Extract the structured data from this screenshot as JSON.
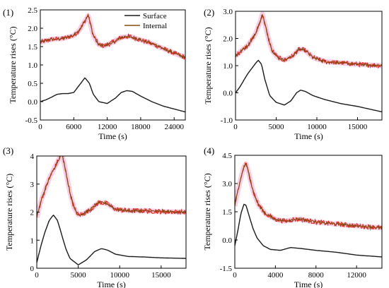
{
  "colors": {
    "surface": "#1a1a1a",
    "internal": "#8b4a0f",
    "internal_noise": "#e0201c",
    "halo": "#f2a6cf",
    "frame": "#000000"
  },
  "chart_data": [
    {
      "type": "line",
      "panel_label": "(1)",
      "xlabel": "Time (s)",
      "ylabel": "Temperature rises (°C)",
      "xlim": [
        0,
        26000
      ],
      "ylim": [
        -0.5,
        2.5
      ],
      "xticks": [
        0,
        6000,
        12000,
        18000,
        24000
      ],
      "xtick_labels": [
        "0",
        "6000",
        "12000",
        "18000",
        "24000"
      ],
      "yticks": [
        -0.5,
        0.0,
        0.5,
        1.0,
        1.5,
        2.0,
        2.5
      ],
      "ytick_labels": [
        "-0.5",
        "0.0",
        "0.5",
        "1.0",
        "1.5",
        "2.0",
        "2.5"
      ],
      "legend": {
        "position": "top-right",
        "entries": [
          "Surface",
          "Internal"
        ]
      },
      "series": [
        {
          "name": "Surface",
          "x": [
            0,
            1000,
            2000,
            3000,
            4000,
            5000,
            6000,
            7000,
            8000,
            8800,
            9500,
            10500,
            12000,
            13500,
            14500,
            15500,
            16500,
            18000,
            20000,
            22000,
            24000,
            26000
          ],
          "y": [
            0.0,
            0.05,
            0.12,
            0.2,
            0.22,
            0.22,
            0.25,
            0.45,
            0.65,
            0.5,
            0.2,
            0.0,
            -0.05,
            0.1,
            0.25,
            0.3,
            0.28,
            0.15,
            0.0,
            -0.12,
            -0.2,
            -0.28
          ]
        },
        {
          "name": "Internal",
          "x": [
            0,
            2000,
            4000,
            6000,
            7000,
            8000,
            8600,
            9000,
            9500,
            10500,
            11500,
            13000,
            14500,
            16000,
            18000,
            20000,
            22000,
            24000,
            26000
          ],
          "y": [
            1.62,
            1.7,
            1.72,
            1.8,
            1.95,
            2.2,
            2.35,
            2.1,
            1.8,
            1.55,
            1.52,
            1.62,
            1.75,
            1.78,
            1.68,
            1.58,
            1.45,
            1.32,
            1.2
          ]
        }
      ]
    },
    {
      "type": "line",
      "panel_label": "(2)",
      "xlabel": "Time (s)",
      "ylabel": "Temperature rises (°C)",
      "xlim": [
        0,
        18000
      ],
      "ylim": [
        -1.0,
        3.0
      ],
      "xticks": [
        0,
        5000,
        10000,
        15000
      ],
      "xtick_labels": [
        "0",
        "5000",
        "10000",
        "15000"
      ],
      "yticks": [
        -1.0,
        0.0,
        1.0,
        2.0,
        3.0
      ],
      "ytick_labels": [
        "-1.0",
        "0.0",
        "1.0",
        "2.0",
        "3.0"
      ],
      "series": [
        {
          "name": "Surface",
          "x": [
            0,
            500,
            1000,
            1500,
            2000,
            2500,
            2800,
            3200,
            3600,
            4200,
            5000,
            6000,
            6800,
            7500,
            8000,
            8600,
            9500,
            11000,
            13000,
            15000,
            18000
          ],
          "y": [
            0.0,
            0.2,
            0.45,
            0.7,
            0.9,
            1.1,
            1.2,
            1.05,
            0.5,
            -0.1,
            -0.35,
            -0.45,
            -0.3,
            0.0,
            0.1,
            0.05,
            -0.1,
            -0.25,
            -0.4,
            -0.5,
            -0.7
          ]
        },
        {
          "name": "Internal",
          "x": [
            0,
            500,
            1000,
            1500,
            2000,
            2500,
            3000,
            3300,
            3600,
            4000,
            4500,
            5200,
            6000,
            7000,
            7800,
            8500,
            9500,
            11000,
            13000,
            15000,
            18000
          ],
          "y": [
            1.35,
            1.5,
            1.62,
            1.75,
            1.95,
            2.2,
            2.6,
            2.9,
            2.55,
            2.05,
            1.55,
            1.3,
            1.2,
            1.35,
            1.6,
            1.58,
            1.3,
            1.15,
            1.1,
            1.05,
            1.0
          ]
        }
      ]
    },
    {
      "type": "line",
      "panel_label": "(3)",
      "xlabel": "Time (s)",
      "ylabel": "Temperature rises (°C)",
      "xlim": [
        0,
        18000
      ],
      "ylim": [
        0,
        4
      ],
      "xticks": [
        0,
        5000,
        10000,
        15000
      ],
      "xtick_labels": [
        "0",
        "5000",
        "10000",
        "15000"
      ],
      "yticks": [
        0,
        1,
        2,
        3,
        4
      ],
      "ytick_labels": [
        "0",
        "1",
        "2",
        "3",
        "4"
      ],
      "series": [
        {
          "name": "Surface",
          "x": [
            0,
            500,
            1000,
            1500,
            2000,
            2500,
            3000,
            3500,
            4000,
            5000,
            6000,
            7000,
            7800,
            8500,
            9500,
            11000,
            13000,
            15000,
            18000
          ],
          "y": [
            0.2,
            0.8,
            1.3,
            1.7,
            1.9,
            1.7,
            1.2,
            0.7,
            0.35,
            0.12,
            0.3,
            0.6,
            0.7,
            0.65,
            0.5,
            0.42,
            0.4,
            0.37,
            0.35
          ]
        },
        {
          "name": "Internal",
          "x": [
            0,
            500,
            1000,
            1500,
            2000,
            2500,
            3000,
            3400,
            4000,
            4500,
            5000,
            5500,
            6500,
            7500,
            8500,
            9500,
            11000,
            13000,
            15000,
            18000
          ],
          "y": [
            1.8,
            2.4,
            2.8,
            3.2,
            3.5,
            3.8,
            4.1,
            3.6,
            2.7,
            2.15,
            1.9,
            1.92,
            2.1,
            2.35,
            2.3,
            2.1,
            2.05,
            2.05,
            2.02,
            2.0
          ]
        }
      ]
    },
    {
      "type": "line",
      "panel_label": "(4)",
      "xlabel": "Time (s)",
      "ylabel": "Temperature rises (°C)",
      "xlim": [
        0,
        14500
      ],
      "ylim": [
        -1.5,
        4.5
      ],
      "xticks": [
        0,
        4000,
        8000,
        12000
      ],
      "xtick_labels": [
        "0",
        "4000",
        "8000",
        "12000"
      ],
      "yticks": [
        -1.5,
        0.0,
        1.5,
        3.0,
        4.5
      ],
      "ytick_labels": [
        "-1.5",
        "0.0",
        "1.5",
        "3.0",
        "4.5"
      ],
      "series": [
        {
          "name": "Surface",
          "x": [
            0,
            300,
            600,
            900,
            1100,
            1400,
            1800,
            2200,
            2800,
            3500,
            4500,
            5500,
            6500,
            8000,
            10000,
            12000,
            14500
          ],
          "y": [
            -0.3,
            0.5,
            1.4,
            1.9,
            1.85,
            1.3,
            0.6,
            0.1,
            -0.3,
            -0.5,
            -0.55,
            -0.4,
            -0.45,
            -0.55,
            -0.65,
            -0.8,
            -0.9
          ]
        },
        {
          "name": "Internal",
          "x": [
            0,
            300,
            600,
            900,
            1100,
            1400,
            1800,
            2300,
            3000,
            4000,
            5000,
            5800,
            6500,
            8000,
            10000,
            12000,
            14500
          ],
          "y": [
            1.8,
            2.6,
            3.3,
            3.9,
            4.05,
            3.5,
            2.6,
            1.9,
            1.4,
            1.1,
            1.0,
            1.1,
            1.1,
            0.95,
            0.85,
            0.75,
            0.65
          ]
        }
      ]
    }
  ]
}
